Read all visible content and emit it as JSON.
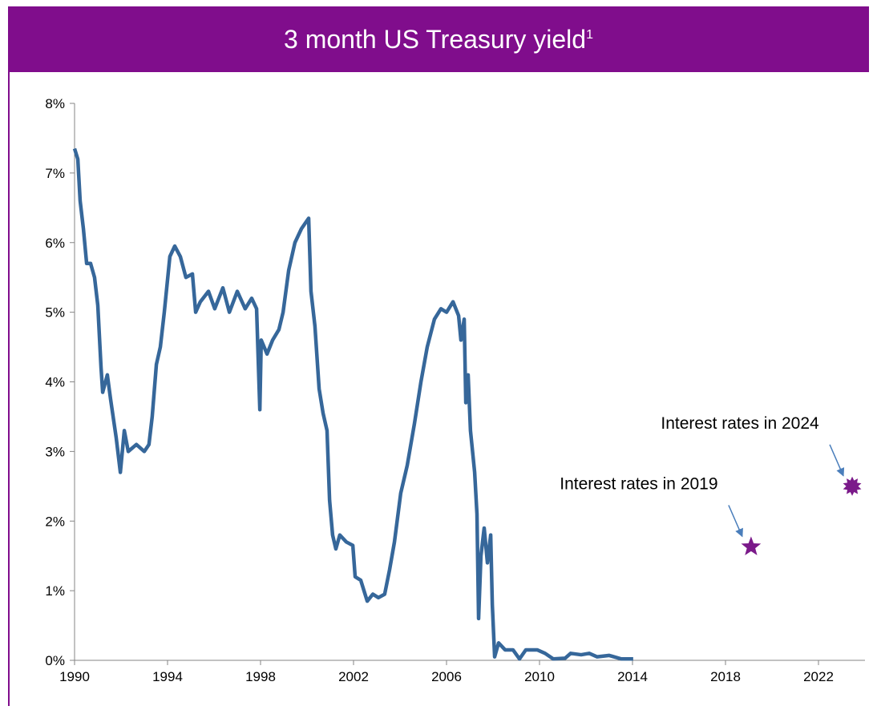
{
  "chart_data": {
    "type": "line",
    "title": "3 month US Treasury yield",
    "title_note": "1",
    "x": [
      1990,
      1990.14,
      1990.24,
      1990.38,
      1990.52,
      1990.69,
      1990.86,
      1991,
      1991.14,
      1991.21,
      1991.41,
      1991.55,
      1991.79,
      1991.97,
      1992.14,
      1992.31,
      1992.66,
      1993,
      1993.2,
      1993.34,
      1993.52,
      1993.69,
      1993.86,
      1994.1,
      1994.31,
      1994.55,
      1994.79,
      1995.07,
      1995.21,
      1995.41,
      1995.76,
      1996.03,
      1996.38,
      1996.66,
      1997,
      1997.34,
      1997.62,
      1997.83,
      1997.97,
      1998.03,
      1998.28,
      1998.52,
      1998.79,
      1998.97,
      1999.21,
      1999.48,
      1999.76,
      2000.07,
      2000.17,
      2000.34,
      2000.52,
      2000.69,
      2000.86,
      2000.97,
      2001.1,
      2001.24,
      2001.41,
      2001.69,
      2001.97,
      2002.07,
      2002.31,
      2002.59,
      2002.83,
      2003.07,
      2003.34,
      2003.55,
      2003.76,
      2004.03,
      2004.31,
      2004.62,
      2004.9,
      2005.17,
      2005.48,
      2005.76,
      2006,
      2006.28,
      2006.52,
      2006.62,
      2006.76,
      2006.83,
      2006.93,
      2007.03,
      2007.21,
      2007.31,
      2007.38,
      2007.48,
      2007.62,
      2007.76,
      2007.9,
      2007.97,
      2008.07,
      2008.24,
      2008.52,
      2008.86,
      2009.14,
      2009.41,
      2009.9,
      2010.24,
      2010.59,
      2011.1,
      2011.34,
      2011.79,
      2012.14,
      2012.48,
      2013,
      2013.52,
      2014.03
    ],
    "series": [
      {
        "color": "#36679a",
        "values": [
          7.35,
          7.2,
          6.6,
          6.2,
          5.7,
          5.7,
          5.5,
          5.1,
          4.2,
          3.85,
          4.1,
          3.75,
          3.2,
          2.7,
          3.3,
          3.0,
          3.1,
          3.0,
          3.1,
          3.5,
          4.25,
          4.5,
          5.0,
          5.8,
          5.95,
          5.8,
          5.5,
          5.55,
          5.0,
          5.15,
          5.3,
          5.05,
          5.35,
          5.0,
          5.3,
          5.05,
          5.2,
          5.05,
          3.6,
          4.6,
          4.4,
          4.6,
          4.75,
          5.0,
          5.6,
          6.0,
          6.2,
          6.35,
          5.3,
          4.8,
          3.9,
          3.55,
          3.3,
          2.3,
          1.8,
          1.6,
          1.8,
          1.7,
          1.65,
          1.2,
          1.15,
          0.85,
          0.95,
          0.9,
          0.95,
          1.3,
          1.7,
          2.4,
          2.8,
          3.4,
          4.0,
          4.5,
          4.9,
          5.05,
          5.0,
          5.15,
          4.95,
          4.6,
          4.9,
          3.7,
          4.1,
          3.3,
          2.7,
          2.1,
          0.6,
          1.5,
          1.9,
          1.4,
          1.8,
          0.8,
          0.05,
          0.25,
          0.15,
          0.15,
          0.02,
          0.15,
          0.15,
          0.1,
          0.02,
          0.03,
          0.1,
          0.08,
          0.1,
          0.05,
          0.07,
          0.02,
          0.02
        ]
      }
    ],
    "points": [
      {
        "label": "Interest rates in 2019",
        "x": 2019.1,
        "y": 1.63,
        "color": "#7b1a8a",
        "marker": "star"
      },
      {
        "label": "Interest rates in 2024",
        "x": 2023.45,
        "y": 2.5,
        "color": "#7b1a8a",
        "marker": "burst"
      }
    ],
    "xlim": [
      1990,
      2024
    ],
    "xticks": [
      1990,
      1994,
      1998,
      2002,
      2006,
      2010,
      2014,
      2018,
      2022
    ],
    "ylim": [
      0,
      8
    ],
    "yticks": [
      {
        "value": 0,
        "label": "0%"
      },
      {
        "value": 1,
        "label": "1%"
      },
      {
        "value": 2,
        "label": "2%"
      },
      {
        "value": 3,
        "label": "3%"
      },
      {
        "value": 4,
        "label": "4%"
      },
      {
        "value": 5,
        "label": "5%"
      },
      {
        "value": 6,
        "label": "6%"
      },
      {
        "value": 7,
        "label": "7%"
      },
      {
        "value": 8,
        "label": "8%"
      }
    ],
    "header_color": "#800d8c",
    "arrow_color": "#4a7ebb"
  }
}
